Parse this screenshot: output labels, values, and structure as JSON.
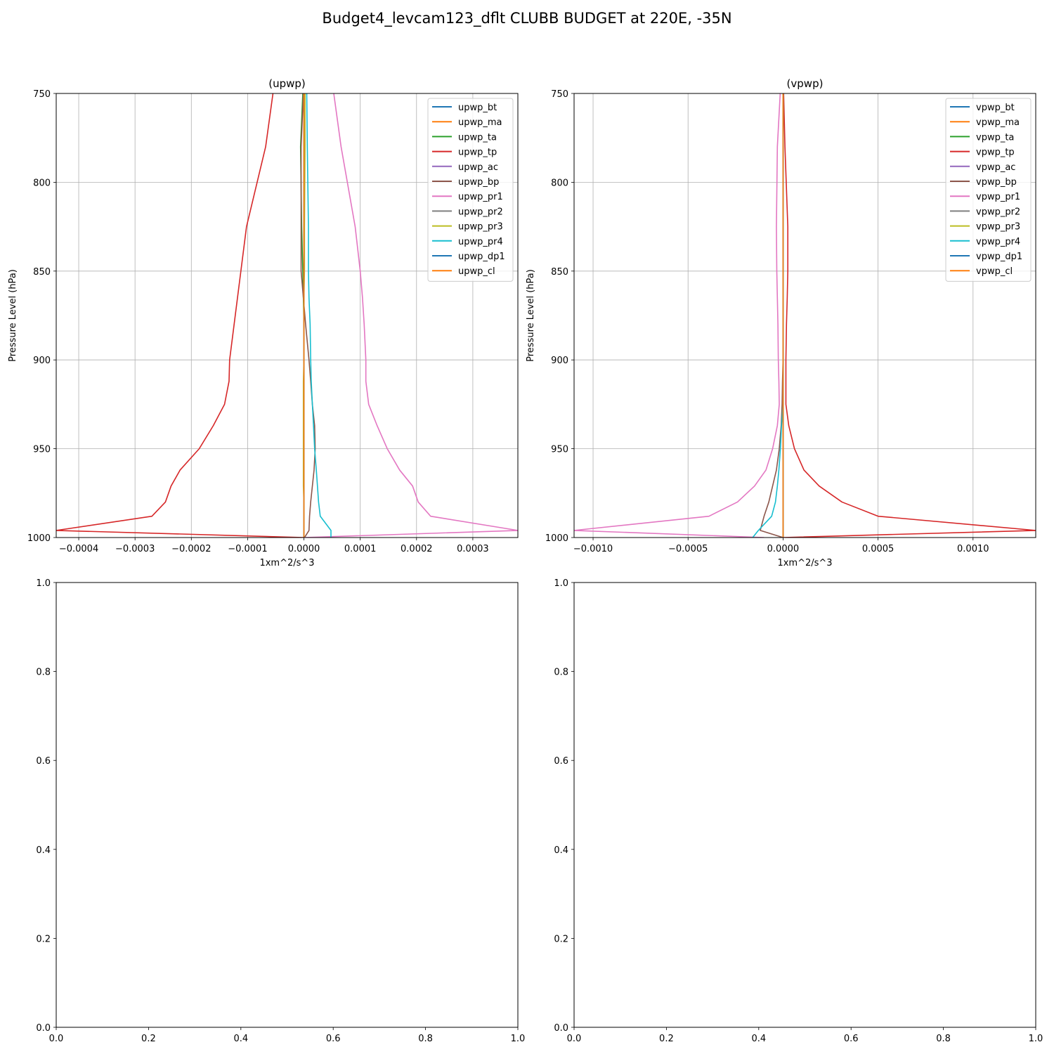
{
  "figure": {
    "title": "Budget4_levcam123_dflt CLUBB BUDGET at 220E, -35N"
  },
  "chart_data": [
    {
      "type": "line",
      "title": "(upwp)",
      "xlabel": "1xm^2/s^3",
      "ylabel": "Pressure Level (hPa)",
      "xlim": [
        -0.00044,
        0.00038
      ],
      "ylim": [
        1000,
        750
      ],
      "y_inverted": true,
      "grid": true,
      "legend": "top-right",
      "xticks": [
        -0.0004,
        -0.0003,
        -0.0002,
        -0.0001,
        0.0,
        0.0001,
        0.0002,
        0.0003
      ],
      "xtick_labels": [
        "−0.0004",
        "−0.0003",
        "−0.0002",
        "−0.0001",
        "0.0000",
        "0.0001",
        "0.0002",
        "0.0003"
      ],
      "yticks": [
        750,
        800,
        850,
        900,
        950,
        1000
      ],
      "ytick_labels": [
        "750",
        "800",
        "850",
        "900",
        "950",
        "1000"
      ],
      "levels": [
        750,
        780,
        825,
        850,
        865,
        880,
        900,
        912,
        925,
        937,
        950,
        962,
        971,
        980,
        988,
        996,
        1000
      ],
      "series": [
        {
          "name": "upwp_bt",
          "color": "#1f77b4",
          "values": [
            0,
            0,
            0,
            0,
            0,
            0,
            0,
            0,
            0,
            0,
            0,
            0,
            0,
            0,
            0,
            0,
            0
          ]
        },
        {
          "name": "upwp_ma",
          "color": "#ff7f0e",
          "values": [
            0,
            0,
            0,
            0,
            0,
            0,
            0,
            0,
            0,
            0,
            0,
            0,
            0,
            0,
            0,
            0,
            0
          ]
        },
        {
          "name": "upwp_ta",
          "color": "#2ca02c",
          "values": [
            -2e-06,
            -6e-06,
            -4e-06,
            -2e-06,
            -1e-06,
            0,
            0,
            0,
            0,
            0,
            0,
            0,
            0,
            0,
            0,
            0,
            0
          ]
        },
        {
          "name": "upwp_tp",
          "color": "#d62728",
          "values": [
            -5.5e-05,
            -6.8e-05,
            -0.000102,
            -0.000112,
            -0.000118,
            -0.000124,
            -0.000132,
            -0.000133,
            -0.000141,
            -0.000161,
            -0.000186,
            -0.00022,
            -0.000236,
            -0.000246,
            -0.00027,
            -0.00044,
            0
          ]
        },
        {
          "name": "upwp_ac",
          "color": "#9467bd",
          "values": [
            0,
            0,
            0,
            0,
            0,
            0,
            0,
            0,
            0,
            0,
            0,
            0,
            0,
            0,
            0,
            0,
            0
          ]
        },
        {
          "name": "upwp_bp",
          "color": "#8c564b",
          "values": [
            -1e-06,
            -5e-06,
            -5e-06,
            -5e-06,
            -1e-06,
            3e-06,
            9e-06,
            1.2e-05,
            1.5e-05,
            1.9e-05,
            2e-05,
            1.8e-05,
            1.5e-05,
            1.2e-05,
            1e-05,
            9e-06,
            1e-06
          ]
        },
        {
          "name": "upwp_pr1",
          "color": "#e377c2",
          "values": [
            5.3e-05,
            6.6e-05,
            9.1e-05,
            0.0001,
            0.000104,
            0.000107,
            0.00011,
            0.00011,
            0.000115,
            0.00013,
            0.000148,
            0.00017,
            0.000193,
            0.000203,
            0.000225,
            0.00038,
            0
          ]
        },
        {
          "name": "upwp_pr2",
          "color": "#7f7f7f",
          "values": [
            0,
            0,
            0,
            0,
            0,
            0,
            0,
            0,
            0,
            0,
            0,
            0,
            0,
            0,
            0,
            0,
            0
          ]
        },
        {
          "name": "upwp_pr3",
          "color": "#bcbd22",
          "values": [
            2e-06,
            2e-06,
            1e-06,
            1e-06,
            0,
            0,
            0,
            -1e-06,
            -1e-06,
            -1e-06,
            -1e-06,
            -1e-06,
            -1e-06,
            0,
            0,
            0,
            0
          ]
        },
        {
          "name": "upwp_pr4",
          "color": "#17becf",
          "values": [
            5e-06,
            6e-06,
            8e-06,
            8e-06,
            9e-06,
            1.1e-05,
            1.2e-05,
            1.3e-05,
            1.5e-05,
            1.7e-05,
            1.9e-05,
            2.2e-05,
            2.4e-05,
            2.6e-05,
            2.9e-05,
            4.8e-05,
            4.8e-05
          ]
        },
        {
          "name": "upwp_dp1",
          "color": "#1f77b4",
          "values": [
            0,
            0,
            0,
            0,
            0,
            0,
            0,
            0,
            0,
            0,
            0,
            0,
            0,
            0,
            0,
            0,
            0
          ]
        },
        {
          "name": "upwp_cl",
          "color": "#ff7f0e",
          "values": [
            0,
            0,
            0,
            0,
            0,
            0,
            0,
            0,
            0,
            0,
            0,
            0,
            0,
            0,
            0,
            0,
            0
          ]
        }
      ]
    },
    {
      "type": "line",
      "title": "(vpwp)",
      "xlabel": "1xm^2/s^3",
      "ylabel": "Pressure Level (hPa)",
      "xlim": [
        -0.0011,
        0.00133
      ],
      "ylim": [
        1000,
        750
      ],
      "y_inverted": true,
      "grid": true,
      "legend": "top-right",
      "xticks": [
        -0.001,
        -0.0005,
        0.0,
        0.0005,
        0.001
      ],
      "xtick_labels": [
        "−0.0010",
        "−0.0005",
        "0.0000",
        "0.0005",
        "0.0010"
      ],
      "yticks": [
        750,
        800,
        850,
        900,
        950,
        1000
      ],
      "ytick_labels": [
        "750",
        "800",
        "850",
        "900",
        "950",
        "1000"
      ],
      "levels": [
        750,
        780,
        825,
        850,
        865,
        880,
        900,
        912,
        925,
        937,
        950,
        962,
        971,
        980,
        988,
        996,
        1000
      ],
      "series": [
        {
          "name": "vpwp_bt",
          "color": "#1f77b4",
          "values": [
            0,
            0,
            0,
            0,
            0,
            0,
            0,
            0,
            0,
            0,
            0,
            0,
            0,
            0,
            0,
            0,
            0
          ]
        },
        {
          "name": "vpwp_ma",
          "color": "#ff7f0e",
          "values": [
            0,
            0,
            0,
            0,
            0,
            0,
            0,
            0,
            0,
            0,
            0,
            0,
            0,
            0,
            0,
            0,
            0
          ]
        },
        {
          "name": "vpwp_ta",
          "color": "#2ca02c",
          "values": [
            0,
            0,
            0,
            0,
            0,
            0,
            0,
            0,
            0,
            0,
            0,
            0,
            0,
            0,
            0,
            0,
            0
          ]
        },
        {
          "name": "vpwp_tp",
          "color": "#d62728",
          "values": [
            3e-06,
            1e-05,
            2.5e-05,
            2.5e-05,
            2.2e-05,
            1.8e-05,
            1.5e-05,
            1.5e-05,
            1.5e-05,
            3e-05,
            6e-05,
            0.00011,
            0.00019,
            0.00031,
            0.0005,
            0.00133,
            0
          ]
        },
        {
          "name": "vpwp_ac",
          "color": "#9467bd",
          "values": [
            0,
            0,
            0,
            0,
            0,
            0,
            0,
            0,
            0,
            0,
            0,
            0,
            0,
            0,
            0,
            0,
            0
          ]
        },
        {
          "name": "vpwp_bp",
          "color": "#8c564b",
          "values": [
            0,
            0,
            0,
            0,
            0,
            0,
            0,
            -3e-06,
            -5e-06,
            -1e-05,
            -2e-05,
            -3.5e-05,
            -5.5e-05,
            -7.5e-05,
            -0.0001,
            -0.00012,
            0
          ]
        },
        {
          "name": "vpwp_pr1",
          "color": "#e377c2",
          "values": [
            -1.5e-05,
            -3e-05,
            -3.5e-05,
            -3.3e-05,
            -3e-05,
            -2.7e-05,
            -2.5e-05,
            -2.2e-05,
            -2e-05,
            -3e-05,
            -5.5e-05,
            -9e-05,
            -0.00015,
            -0.00024,
            -0.00039,
            -0.0011,
            -0.0001
          ]
        },
        {
          "name": "vpwp_pr2",
          "color": "#7f7f7f",
          "values": [
            0,
            0,
            0,
            0,
            0,
            0,
            0,
            0,
            0,
            0,
            0,
            0,
            0,
            0,
            0,
            0,
            0
          ]
        },
        {
          "name": "vpwp_pr3",
          "color": "#bcbd22",
          "values": [
            0,
            0,
            0,
            0,
            0,
            0,
            0,
            0,
            0,
            0,
            0,
            0,
            0,
            0,
            0,
            0,
            0
          ]
        },
        {
          "name": "vpwp_pr4",
          "color": "#17becf",
          "values": [
            0,
            0,
            0,
            0,
            0,
            0,
            0,
            0,
            0,
            -8e-06,
            -1.4e-05,
            -2.2e-05,
            -3e-05,
            -4e-05,
            -6e-05,
            -0.00013,
            -0.00016
          ]
        },
        {
          "name": "vpwp_dp1",
          "color": "#1f77b4",
          "values": [
            0,
            0,
            0,
            0,
            0,
            0,
            0,
            0,
            0,
            0,
            0,
            0,
            0,
            0,
            0,
            0,
            0
          ]
        },
        {
          "name": "vpwp_cl",
          "color": "#ff7f0e",
          "values": [
            0,
            0,
            0,
            0,
            0,
            0,
            0,
            0,
            0,
            0,
            0,
            0,
            0,
            0,
            0,
            0,
            0
          ]
        }
      ]
    },
    {
      "type": "line",
      "title": "",
      "xlim": [
        0,
        1
      ],
      "ylim": [
        0,
        1
      ],
      "grid": false,
      "xticks": [
        0,
        0.2,
        0.4,
        0.6,
        0.8,
        1.0
      ],
      "xtick_labels": [
        "0.0",
        "0.2",
        "0.4",
        "0.6",
        "0.8",
        "1.0"
      ],
      "yticks": [
        0,
        0.2,
        0.4,
        0.6,
        0.8,
        1.0
      ],
      "ytick_labels": [
        "0.0",
        "0.2",
        "0.4",
        "0.6",
        "0.8",
        "1.0"
      ],
      "series": []
    },
    {
      "type": "line",
      "title": "",
      "xlim": [
        0,
        1
      ],
      "ylim": [
        0,
        1
      ],
      "grid": false,
      "xticks": [
        0,
        0.2,
        0.4,
        0.6,
        0.8,
        1.0
      ],
      "xtick_labels": [
        "0.0",
        "0.2",
        "0.4",
        "0.6",
        "0.8",
        "1.0"
      ],
      "yticks": [
        0,
        0.2,
        0.4,
        0.6,
        0.8,
        1.0
      ],
      "ytick_labels": [
        "0.0",
        "0.2",
        "0.4",
        "0.6",
        "0.8",
        "1.0"
      ],
      "series": []
    }
  ]
}
